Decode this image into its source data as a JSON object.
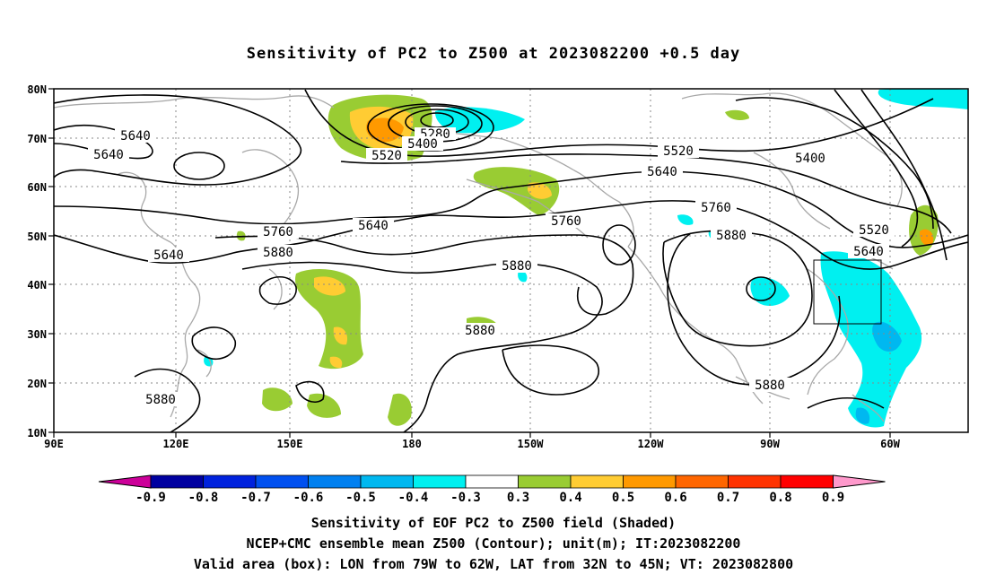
{
  "title": "Sensitivity of PC2 to Z500 at 2023082200 +0.5 day",
  "axes": {
    "x_ticks": [
      "90E",
      "120E",
      "150E",
      "180",
      "150W",
      "120W",
      "90W",
      "60W"
    ],
    "y_ticks": [
      "80N",
      "70N",
      "60N",
      "50N",
      "40N",
      "30N",
      "20N",
      "10N"
    ]
  },
  "contour_labels": [
    "5640",
    "5640",
    "5640",
    "5640",
    "5280",
    "5400",
    "5520",
    "5520",
    "5640",
    "5400",
    "5760",
    "5760",
    "5760",
    "5880",
    "5880",
    "5880",
    "5880",
    "5880",
    "5880",
    "5520",
    "5640"
  ],
  "colorbar": {
    "labels": [
      "-0.9",
      "-0.8",
      "-0.7",
      "-0.6",
      "-0.5",
      "-0.4",
      "-0.3",
      "0.3",
      "0.4",
      "0.5",
      "0.6",
      "0.7",
      "0.8",
      "0.9"
    ],
    "colors": [
      "#0000a0",
      "#0022dd",
      "#0050f0",
      "#0080f0",
      "#00b8f0",
      "#00f0f0",
      "#ffffff",
      "#99cc33",
      "#ffcc33",
      "#ff9900",
      "#ff6600",
      "#ff3300",
      "#ff0000"
    ],
    "low_end_color": "#cc0099",
    "high_end_color": "#ff99cc"
  },
  "box": {
    "lon_min": -79,
    "lon_max": -62,
    "lat_min": 32,
    "lat_max": 45
  },
  "captions": [
    "Sensitivity of EOF PC2 to Z500 field (Shaded)",
    "NCEP+CMC ensemble mean Z500 (Contour); unit(m); IT:2023082200",
    "Valid area (box): LON from 79W to 62W, LAT from 32N to 45N; VT: 2023082800"
  ]
}
